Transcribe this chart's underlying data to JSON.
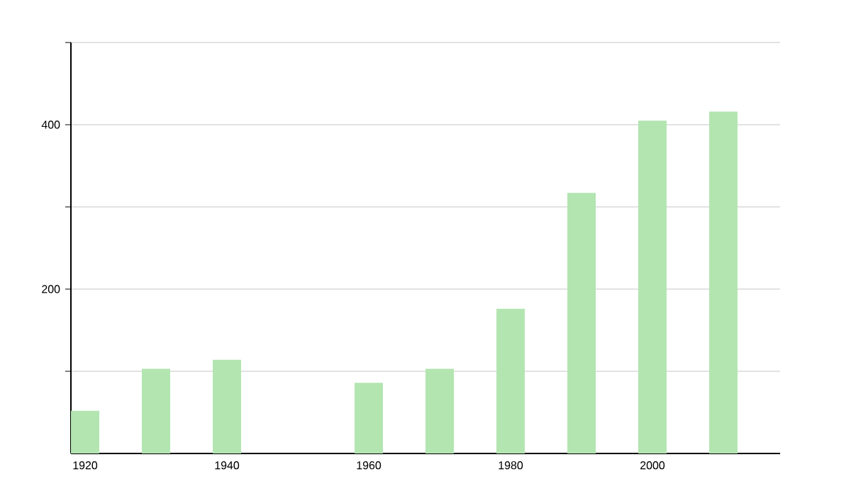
{
  "chart_data": {
    "type": "bar",
    "x": [
      1920,
      1930,
      1940,
      1960,
      1970,
      1980,
      1990,
      2000,
      2010
    ],
    "values": [
      52,
      103,
      114,
      86,
      103,
      176,
      317,
      405,
      416
    ],
    "color": "#b3e5b1",
    "xlim": [
      1918,
      2018
    ],
    "xticks": [
      1920,
      1940,
      1960,
      1980,
      2000
    ],
    "ylim": [
      0,
      500
    ],
    "yticks": [
      {
        "value": 100,
        "label": null
      },
      200,
      {
        "value": 300,
        "label": null
      },
      400,
      {
        "value": 500,
        "label": null
      }
    ],
    "grid": "y"
  }
}
